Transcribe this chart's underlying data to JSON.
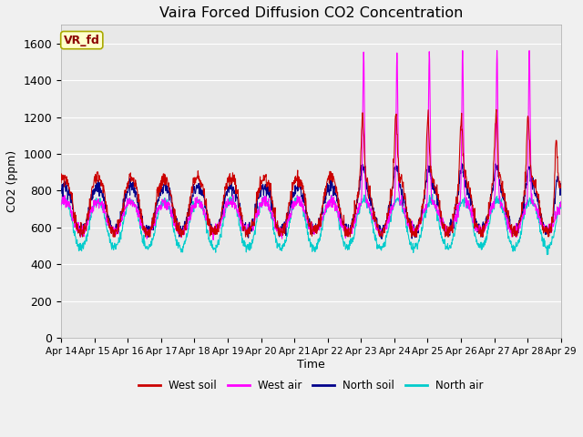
{
  "title": "Vaira Forced Diffusion CO2 Concentration",
  "xlabel": "Time",
  "ylabel": "CO2 (ppm)",
  "ylim": [
    0,
    1700
  ],
  "yticks": [
    0,
    200,
    400,
    600,
    800,
    1000,
    1200,
    1400,
    1600
  ],
  "legend_labels": [
    "West soil",
    "West air",
    "North soil",
    "North air"
  ],
  "legend_colors": [
    "#cc0000",
    "#ff00ff",
    "#00008b",
    "#00cccc"
  ],
  "annotation_text": "VR_fd",
  "background_color": "#e8e8e8",
  "grid_color": "#ffffff",
  "n_days": 15,
  "start_day": 14,
  "points_per_day": 96
}
